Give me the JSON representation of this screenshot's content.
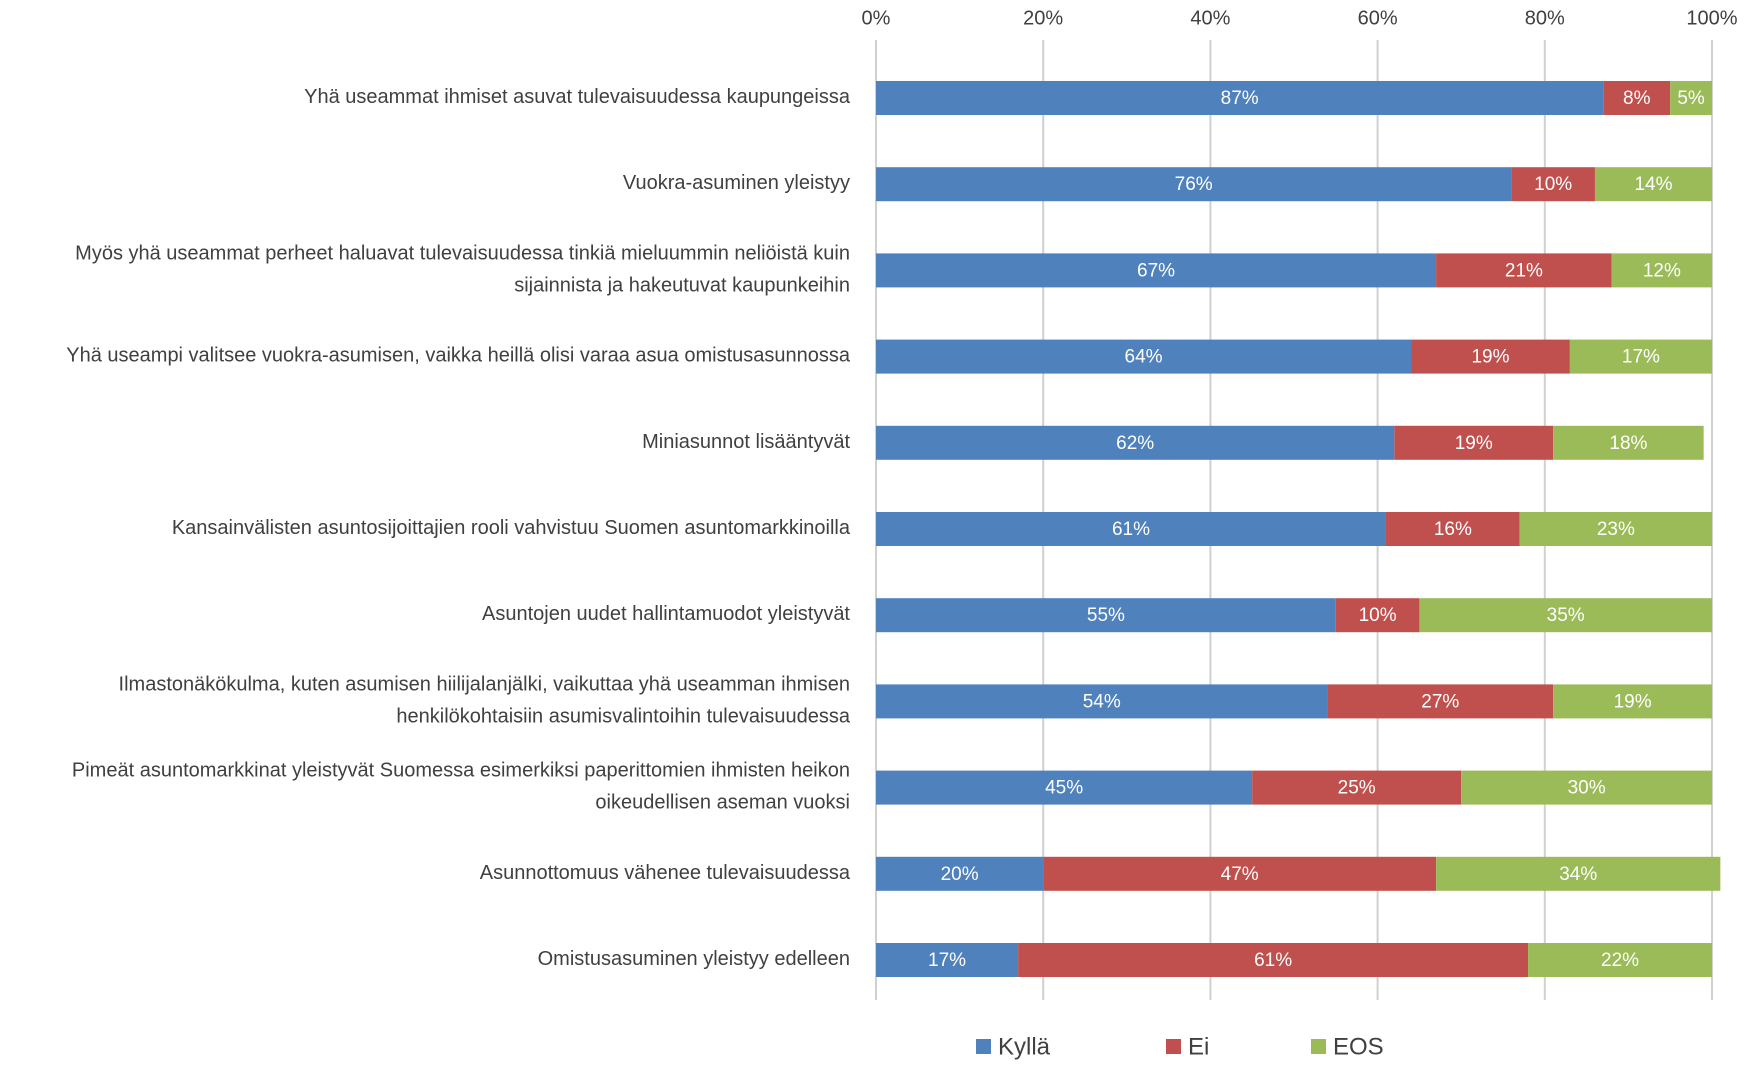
{
  "chart_data": {
    "type": "stacked_bar_horizontal",
    "categories": [
      "Yhä useammat ihmiset asuvat tulevaisuudessa kaupungeissa",
      "Vuokra-asuminen yleistyy",
      "Myös yhä useammat perheet haluavat tulevaisuudessa tinkiä mieluummin neliöistä kuin sijainnista ja hakeutuvat kaupunkeihin",
      "Yhä useampi valitsee vuokra-asumisen, vaikka heillä olisi varaa asua omistusasunnossa",
      "Miniasunnot lisääntyvät",
      "Kansainvälisten asuntosijoittajien rooli vahvistuu Suomen asuntomarkkinoilla",
      "Asuntojen uudet hallintamuodot yleistyvät",
      "Ilmastonäkökulma, kuten asumisen hiilijalanjälki, vaikuttaa yhä useamman ihmisen henkilökohtaisiin asumisvalintoihin tulevaisuudessa",
      "Pimeät asuntomarkkinat yleistyvät Suomessa esimerkiksi paperittomien ihmisten heikon oikeudellisen aseman vuoksi",
      "Asunnottomuus vähenee tulevaisuudessa",
      "Omistusasuminen yleistyy edelleen"
    ],
    "series": [
      {
        "name": "Kyllä",
        "color": "#4f81bd",
        "values": [
          87,
          76,
          67,
          64,
          62,
          61,
          55,
          54,
          45,
          20,
          17
        ],
        "value_labels": [
          "87%",
          "76%",
          "67%",
          "64%",
          "62%",
          "61%",
          "55%",
          "54%",
          "45%",
          "20%",
          "17%"
        ]
      },
      {
        "name": "Ei",
        "color": "#c0504d",
        "values": [
          8,
          10,
          21,
          19,
          19,
          16,
          10,
          27,
          25,
          47,
          61
        ],
        "value_labels": [
          "8%",
          "10%",
          "21%",
          "19%",
          "19%",
          "16%",
          "10%",
          "27%",
          "25%",
          "47%",
          "61%"
        ]
      },
      {
        "name": "EOS",
        "color": "#9bbb59",
        "values": [
          5,
          14,
          12,
          17,
          18,
          23,
          35,
          19,
          30,
          34,
          22
        ],
        "value_labels": [
          "5%",
          "14%",
          "12%",
          "17%",
          "18%",
          "23%",
          "35%",
          "19%",
          "30%",
          "34%",
          "22%"
        ]
      }
    ],
    "xlim": [
      0,
      100
    ],
    "xticks": [
      {
        "value": 0,
        "label": "0%"
      },
      {
        "value": 20,
        "label": "20%"
      },
      {
        "value": 40,
        "label": "40%"
      },
      {
        "value": 60,
        "label": "60%"
      },
      {
        "value": 80,
        "label": "80%"
      },
      {
        "value": 100,
        "label": "100%"
      }
    ],
    "grid": true,
    "legend": "bottom"
  }
}
